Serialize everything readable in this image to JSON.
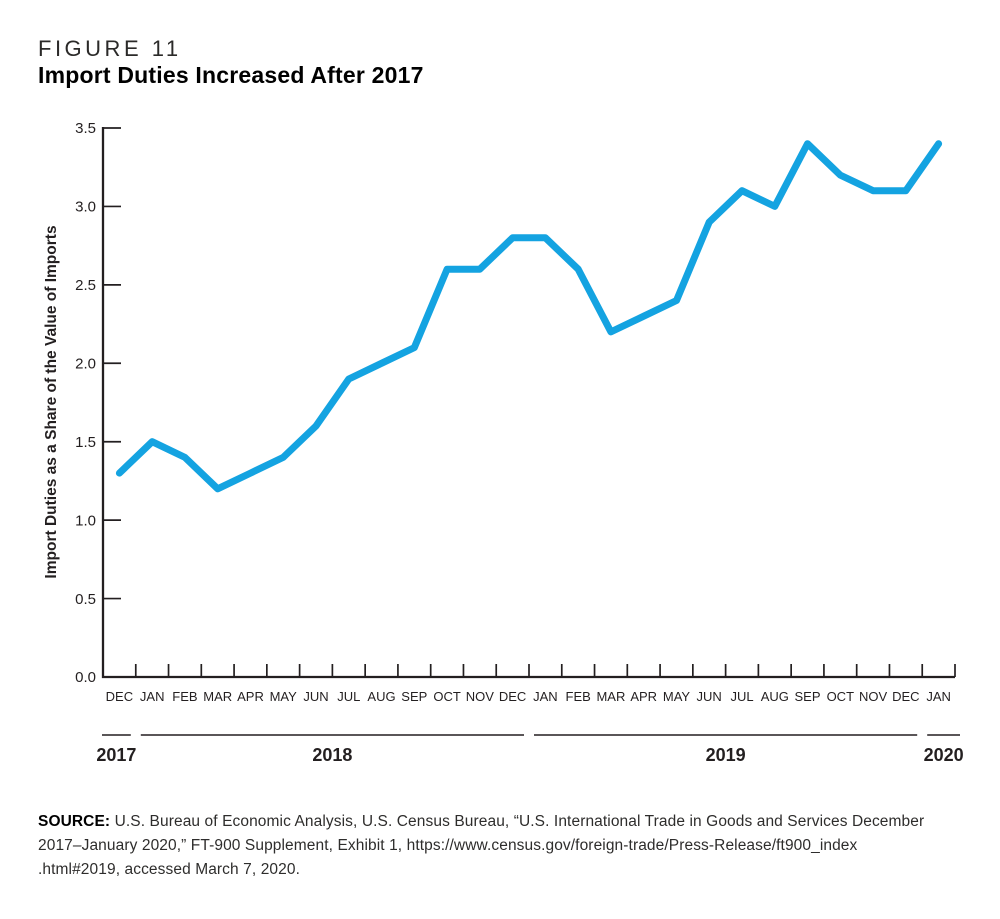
{
  "figure": {
    "label": "FIGURE 11",
    "title": "Import Duties Increased After 2017"
  },
  "chart_data": {
    "type": "line",
    "title": "Import Duties Increased After 2017",
    "xlabel": "",
    "ylabel": "Import Duties as a Share of the Value of Imports",
    "ylim": [
      0,
      3.5
    ],
    "ytick_step": 0.5,
    "ytick_labels": [
      "0.0",
      "0.5",
      "1.0",
      "1.5",
      "2.0",
      "2.5",
      "3.0",
      "3.5"
    ],
    "grid": false,
    "legend": "none",
    "line_color": "#14a3e1",
    "axis_color": "#231f20",
    "text_color": "#231f20",
    "categories": [
      "DEC",
      "JAN",
      "FEB",
      "MAR",
      "APR",
      "MAY",
      "JUN",
      "JUL",
      "AUG",
      "SEP",
      "OCT",
      "NOV",
      "DEC",
      "JAN",
      "FEB",
      "MAR",
      "APR",
      "MAY",
      "JUN",
      "JUL",
      "AUG",
      "SEP",
      "OCT",
      "NOV",
      "DEC",
      "JAN"
    ],
    "year_groups": [
      {
        "label": "2017",
        "from": 0,
        "to": 0
      },
      {
        "label": "2018",
        "from": 1,
        "to": 12
      },
      {
        "label": "2019",
        "from": 13,
        "to": 24
      },
      {
        "label": "2020",
        "from": 25,
        "to": 25
      }
    ],
    "series": [
      {
        "name": "Import duties as a share of the value of imports",
        "values": [
          1.3,
          1.5,
          1.4,
          1.2,
          1.3,
          1.4,
          1.6,
          1.9,
          2.0,
          2.1,
          2.6,
          2.6,
          2.8,
          2.8,
          2.6,
          2.2,
          2.3,
          2.4,
          2.9,
          3.1,
          3.0,
          3.4,
          3.2,
          3.1,
          3.1,
          3.4
        ]
      }
    ]
  },
  "source": {
    "label": "SOURCE:",
    "lines": [
      "U.S. Bureau of Economic Analysis, U.S. Census Bureau, “U.S. International Trade in Goods and Services December",
      "2017–January 2020,” FT-900 Supplement, Exhibit 1, https://www.census.gov/foreign-trade/Press-Release/ft900_index",
      ".html#2019, accessed March 7, 2020."
    ]
  }
}
